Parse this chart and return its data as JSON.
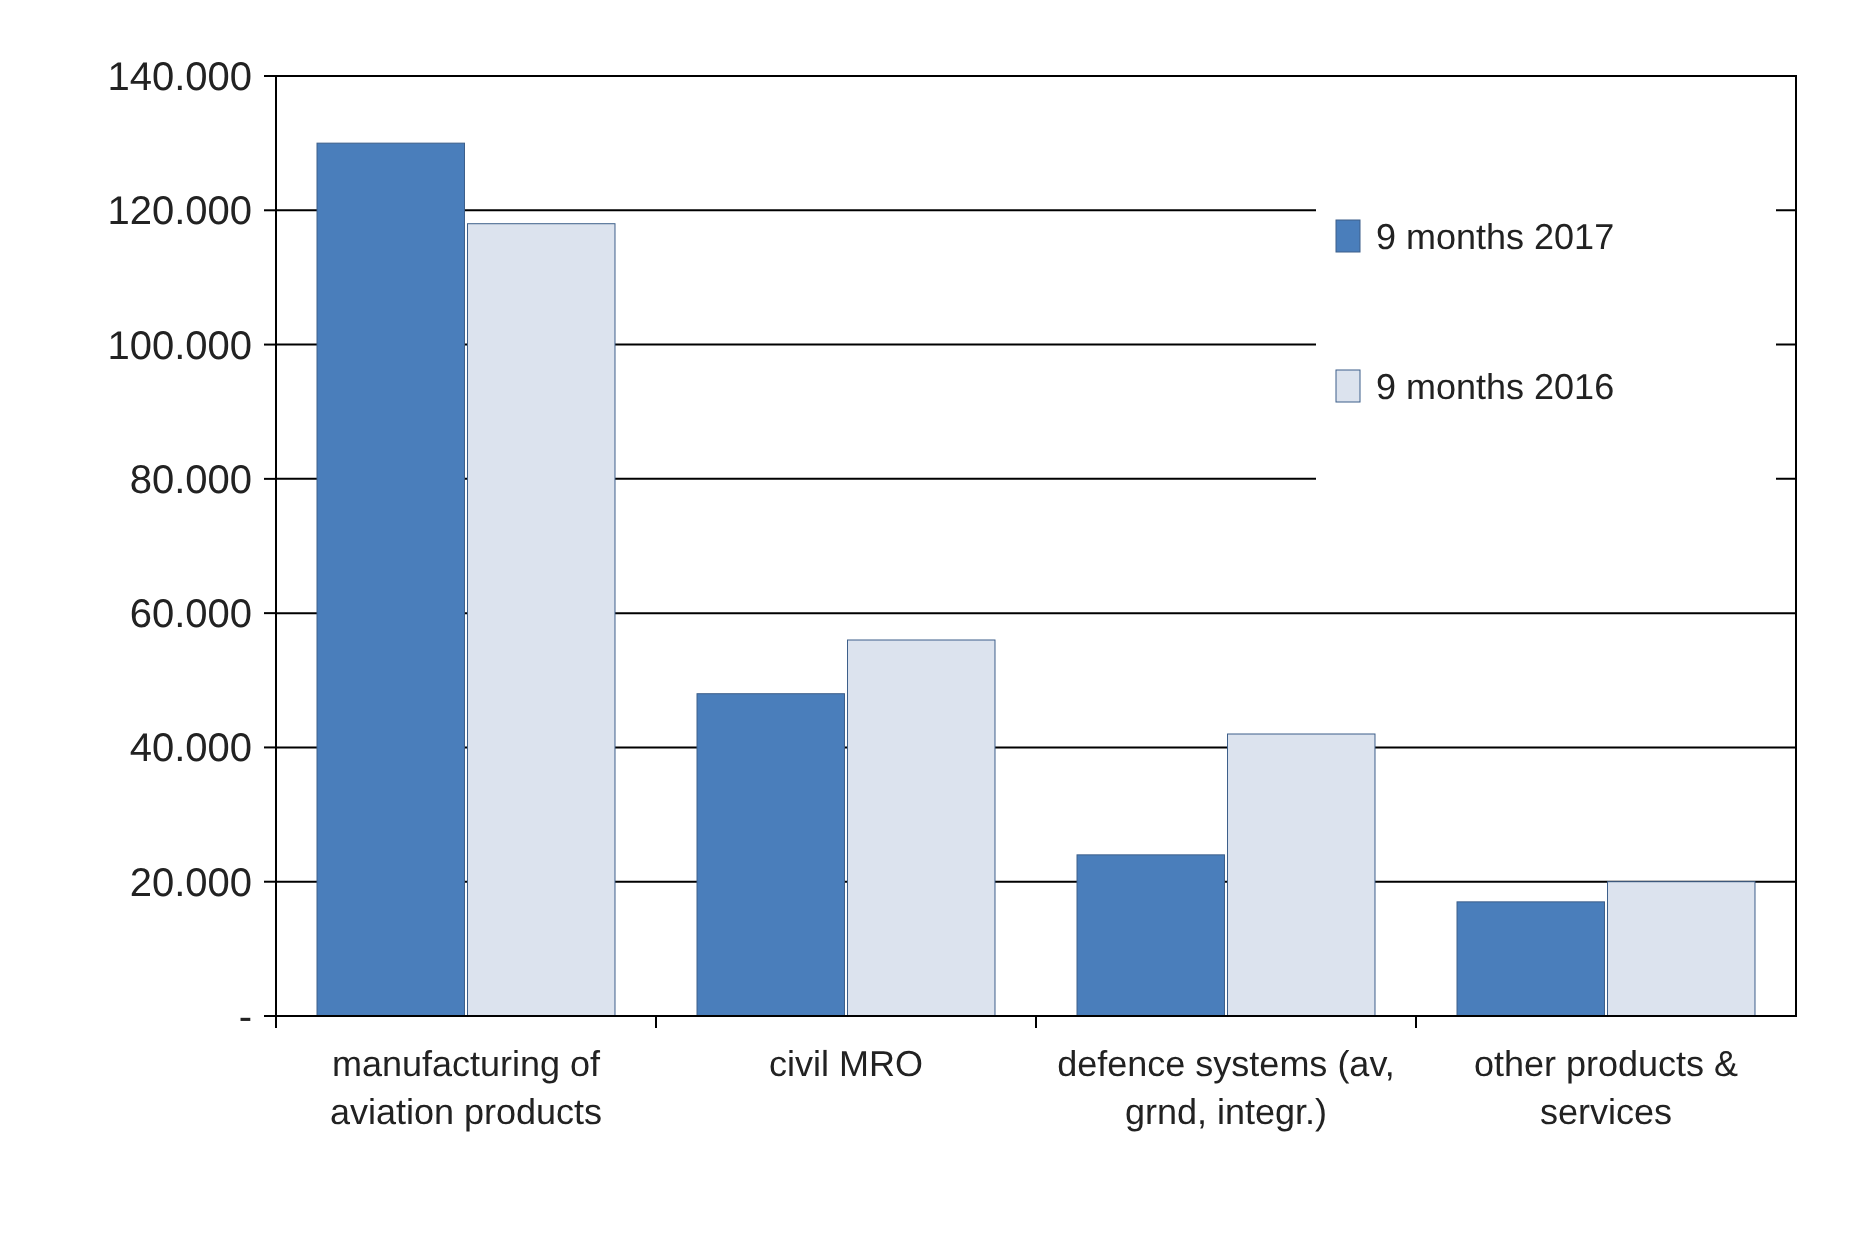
{
  "chart_data": {
    "type": "bar",
    "categories": [
      "manufacturing of aviation products",
      "civil MRO",
      "defence systems (av, grnd, integr.)",
      "other products & services"
    ],
    "series": [
      {
        "name": "9 months 2017",
        "color": "#4a7ebb",
        "values": [
          130,
          48,
          24,
          17
        ]
      },
      {
        "name": "9 months 2016",
        "color": "#dce3ee",
        "values": [
          118,
          56,
          42,
          20
        ]
      }
    ],
    "ylim": [
      0,
      140
    ],
    "yticks": [
      {
        "value": 0,
        "label": "-"
      },
      {
        "value": 20,
        "label": "20.000"
      },
      {
        "value": 40,
        "label": "40.000"
      },
      {
        "value": 60,
        "label": "60.000"
      },
      {
        "value": 80,
        "label": "80.000"
      },
      {
        "value": 100,
        "label": "100.000"
      },
      {
        "value": 120,
        "label": "120.000"
      },
      {
        "value": 140,
        "label": "140.000"
      }
    ],
    "grid": "y",
    "legend": "top right"
  }
}
